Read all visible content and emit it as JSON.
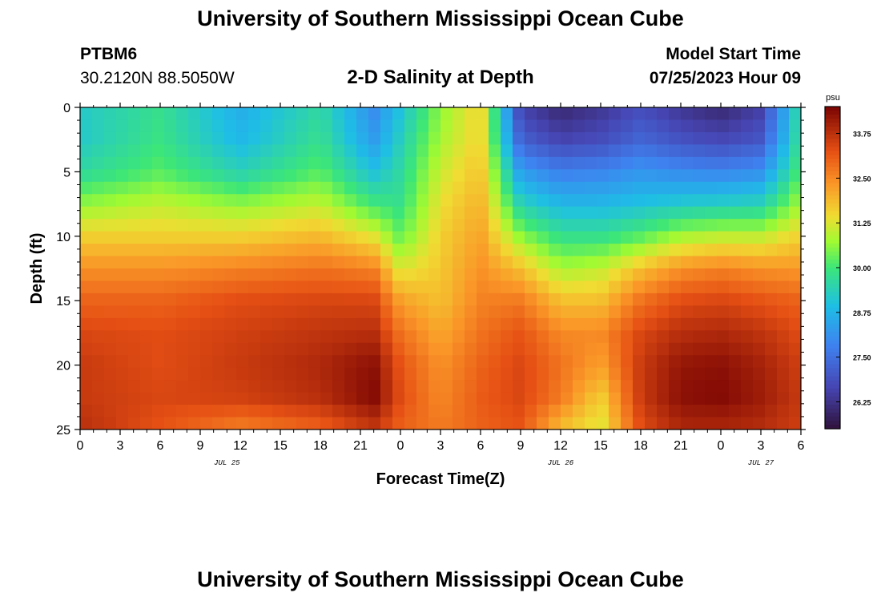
{
  "header": {
    "title": "University of Southern Mississippi Ocean Cube",
    "footer_title": "University of Southern Mississippi Ocean Cube",
    "station": "PTBM6",
    "coords": "30.2120N  88.5050W",
    "subtitle": "2-D Salinity at Depth",
    "model_start_label": "Model Start Time",
    "model_start_value": "07/25/2023 Hour 09"
  },
  "chart_data": {
    "type": "heatmap",
    "title": "2-D Salinity at Depth",
    "xlabel": "Forecast Time(Z)",
    "ylabel": "Depth (ft)",
    "x_range_hours": [
      0,
      54
    ],
    "x_ticks": [
      "0",
      "3",
      "6",
      "9",
      "12",
      "15",
      "18",
      "21",
      "0",
      "3",
      "6",
      "9",
      "12",
      "15",
      "18",
      "21",
      "0",
      "3",
      "6"
    ],
    "date_labels": [
      {
        "label": "JUL 25",
        "hour": 11
      },
      {
        "label": "JUL 26",
        "hour": 36
      },
      {
        "label": "JUL 27",
        "hour": 51
      }
    ],
    "y_range_ft": [
      0,
      25
    ],
    "y_ticks": [
      "0",
      "5",
      "10",
      "15",
      "20",
      "25"
    ],
    "colorbar": {
      "unit": "psu",
      "min": 25.5,
      "max": 34.5,
      "tick_labels": [
        "33.75",
        "32.50",
        "31.25",
        "30.00",
        "28.75",
        "27.50",
        "26.25"
      ]
    },
    "columns_time_hours": [
      0,
      6,
      12,
      18,
      22,
      24,
      27,
      30,
      33,
      36,
      39,
      42,
      45,
      48,
      51,
      54
    ],
    "depth_rows_ft": [
      0,
      2.5,
      5,
      7.5,
      10,
      12.5,
      15,
      17.5,
      20,
      22.5,
      25
    ],
    "salinity_psu": [
      [
        29.2,
        29.8,
        28.6,
        29.6,
        28.0,
        29.0,
        30.6,
        31.6,
        26.6,
        26.0,
        26.3,
        26.8,
        26.3,
        26.0,
        26.5,
        29.8
      ],
      [
        29.2,
        29.9,
        28.8,
        29.8,
        28.3,
        29.3,
        30.8,
        31.6,
        27.2,
        26.6,
        26.8,
        27.3,
        26.9,
        26.7,
        27.0,
        29.9
      ],
      [
        29.6,
        30.2,
        29.4,
        30.2,
        29.0,
        29.6,
        31.1,
        31.8,
        28.3,
        27.8,
        27.9,
        28.2,
        28.0,
        27.9,
        28.1,
        30.2
      ],
      [
        30.6,
        31.0,
        30.6,
        31.0,
        30.0,
        29.8,
        31.4,
        32.0,
        29.4,
        28.8,
        28.8,
        29.0,
        29.2,
        29.3,
        29.4,
        30.8
      ],
      [
        31.6,
        31.6,
        31.6,
        31.9,
        31.3,
        30.3,
        31.6,
        32.2,
        30.6,
        29.8,
        29.8,
        30.2,
        30.8,
        31.0,
        31.0,
        31.6
      ],
      [
        32.4,
        32.4,
        32.6,
        32.8,
        32.6,
        31.2,
        31.7,
        32.4,
        31.8,
        30.8,
        31.0,
        31.8,
        32.4,
        32.6,
        32.4,
        32.3
      ],
      [
        33.0,
        33.0,
        33.3,
        33.4,
        33.4,
        32.2,
        31.8,
        32.6,
        32.7,
        31.8,
        31.8,
        32.8,
        33.3,
        33.4,
        33.2,
        33.0
      ],
      [
        33.4,
        33.3,
        33.5,
        33.7,
        33.8,
        32.8,
        32.1,
        32.8,
        33.2,
        32.5,
        32.5,
        33.4,
        33.8,
        33.9,
        33.7,
        33.3
      ],
      [
        33.6,
        33.3,
        33.6,
        33.9,
        34.3,
        33.2,
        32.4,
        33.0,
        33.4,
        32.8,
        32.2,
        33.6,
        34.2,
        34.3,
        34.0,
        33.5
      ],
      [
        33.6,
        33.4,
        33.5,
        33.8,
        34.4,
        33.3,
        32.5,
        33.1,
        33.4,
        32.7,
        31.6,
        33.6,
        34.3,
        34.4,
        34.1,
        33.6
      ],
      [
        33.8,
        33.2,
        32.6,
        33.0,
        33.6,
        33.0,
        32.7,
        33.0,
        33.2,
        31.8,
        31.2,
        33.3,
        33.9,
        33.9,
        33.8,
        33.5
      ]
    ]
  }
}
